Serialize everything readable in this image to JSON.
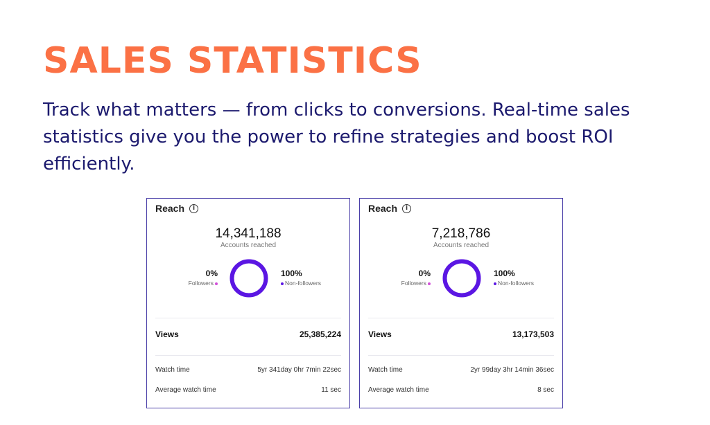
{
  "hero": {
    "title": "SALES STATISTICS",
    "description": "Track what matters — from clicks to conversions. Real-time sales statistics give you the power to refine strategies and boost ROI efficiently."
  },
  "colors": {
    "accent_orange": "#fb7145",
    "text_navy": "#1c1a6e",
    "card_border": "#4a3fa8",
    "donut_purple": "#5b16e3",
    "followers_dot": "#d24fd9"
  },
  "cards": [
    {
      "header": "Reach",
      "header_icon": "info-icon",
      "accounts_reached": "14,341,188",
      "accounts_label": "Accounts reached",
      "followers_pct": "0%",
      "followers_label": "Followers",
      "nonfollowers_pct": "100%",
      "nonfollowers_label": "Non-followers",
      "donut_fill_fraction": 1.0,
      "views_label": "Views",
      "views_value": "25,385,224",
      "watch_time_label": "Watch time",
      "watch_time_value": "5yr 341day 0hr 7min 22sec",
      "avg_watch_label": "Average watch time",
      "avg_watch_value": "11 sec"
    },
    {
      "header": "Reach",
      "header_icon": "info-icon",
      "accounts_reached": "7,218,786",
      "accounts_label": "Accounts reached",
      "followers_pct": "0%",
      "followers_label": "Followers",
      "nonfollowers_pct": "100%",
      "nonfollowers_label": "Non-followers",
      "donut_fill_fraction": 1.0,
      "views_label": "Views",
      "views_value": "13,173,503",
      "watch_time_label": "Watch time",
      "watch_time_value": "2yr 99day 3hr 14min 36sec",
      "avg_watch_label": "Average watch time",
      "avg_watch_value": "8 sec"
    }
  ]
}
